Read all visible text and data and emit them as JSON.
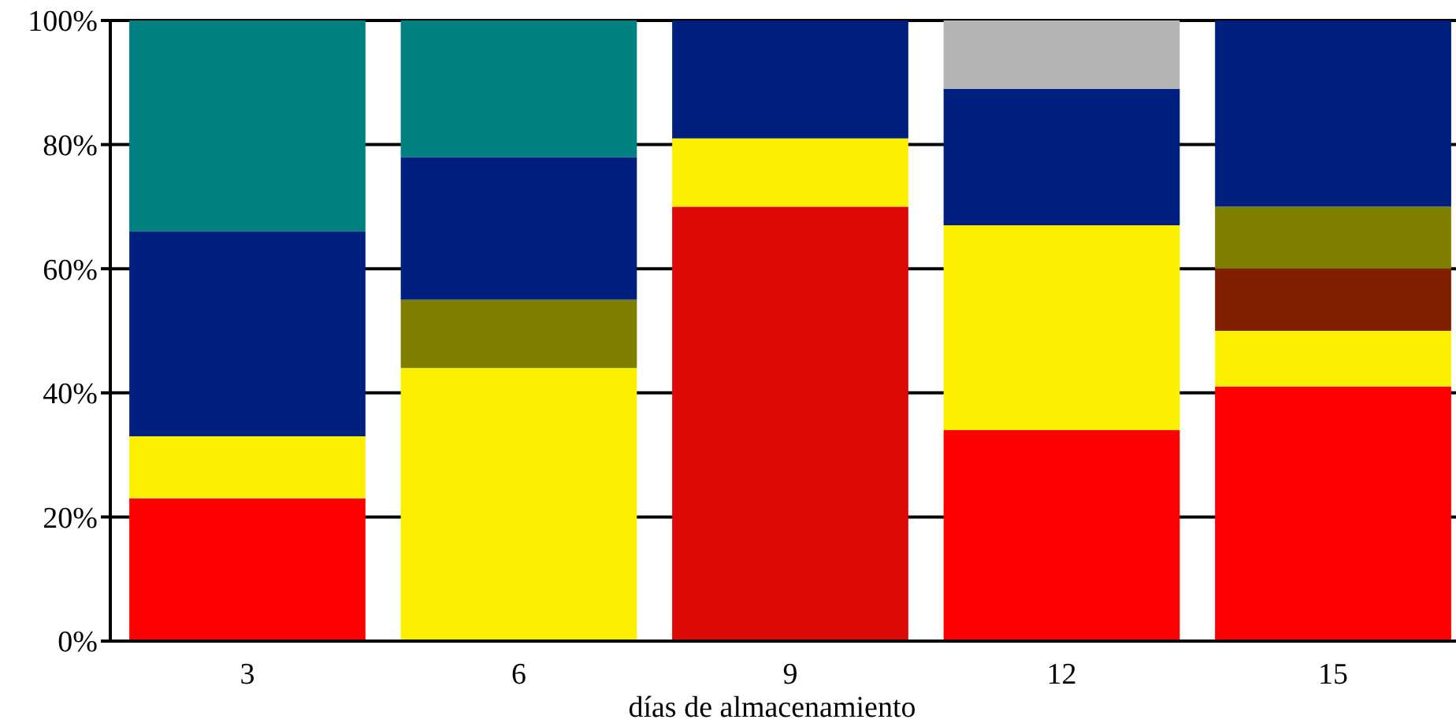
{
  "chart_data": {
    "type": "bar",
    "stacked": true,
    "xlabel": "días de almacenamiento",
    "categories": [
      "3",
      "6",
      "9",
      "12",
      "15"
    ],
    "series": [
      {
        "colors": [
          "#ff0000",
          "#ff0000",
          "#dd0a05",
          "#ff0000",
          "#ff0000"
        ],
        "values": [
          23,
          null,
          70,
          34,
          41
        ]
      },
      {
        "color": "#fbf000",
        "values": [
          10,
          44,
          11,
          33,
          9
        ]
      },
      {
        "color": "#802000",
        "values": [
          null,
          null,
          null,
          null,
          10
        ]
      },
      {
        "color": "#808000",
        "values": [
          null,
          11,
          null,
          null,
          10
        ]
      },
      {
        "color": "#002080",
        "values": [
          33,
          23,
          19,
          22,
          30
        ]
      },
      {
        "color": "#008080",
        "values": [
          34,
          22,
          null,
          null,
          null
        ]
      },
      {
        "color": "#b4b4b4",
        "values": [
          null,
          null,
          null,
          11,
          null
        ]
      }
    ],
    "ylim": [
      0,
      100
    ],
    "yticks": [
      {
        "value": 0,
        "label": "0%"
      },
      {
        "value": 20,
        "label": "20%"
      },
      {
        "value": 40,
        "label": "40%"
      },
      {
        "value": 60,
        "label": "60%"
      },
      {
        "value": 80,
        "label": "80%"
      },
      {
        "value": 100,
        "label": "100%"
      }
    ],
    "grid": "y"
  }
}
